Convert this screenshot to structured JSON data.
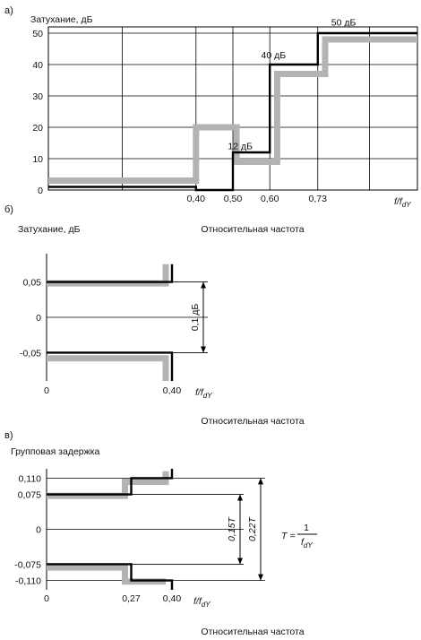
{
  "colors": {
    "line": "#000000",
    "mask": "#b3b3b3",
    "grid": "#000000",
    "text": "#111111"
  },
  "chart_data": [
    {
      "id": "a",
      "type": "line",
      "panel_label": "а)",
      "ylabel": "Затухание, дБ",
      "xlabel": "Относительная частота",
      "x_unit": "f/f",
      "x_unit_sub": "dY",
      "xlim": [
        0,
        1.0
      ],
      "ylim": [
        0,
        52
      ],
      "yticks": [
        {
          "value": 0,
          "label": "0"
        },
        {
          "value": 10,
          "label": "10"
        },
        {
          "value": 20,
          "label": "20"
        },
        {
          "value": 30,
          "label": "30"
        },
        {
          "value": 40,
          "label": "40"
        },
        {
          "value": 50,
          "label": "50"
        }
      ],
      "xticks": [
        {
          "value": 0.4,
          "label": "0,40"
        },
        {
          "value": 0.5,
          "label": "0,50"
        },
        {
          "value": 0.6,
          "label": "0,60"
        },
        {
          "value": 0.73,
          "label": "0,73"
        }
      ],
      "grid_x": [
        0.2,
        0.4,
        0.5,
        0.6,
        0.73,
        0.87
      ],
      "grid_y": [
        10,
        20,
        30,
        40,
        50
      ],
      "series": [
        {
          "role": "mask",
          "x": [
            0,
            0.4,
            0.4,
            0.51,
            0.51,
            0.62,
            0.62,
            0.75,
            0.75,
            1.0
          ],
          "y": [
            3,
            3,
            20,
            20,
            9,
            9,
            37,
            37,
            48,
            48
          ]
        },
        {
          "role": "limit",
          "x": [
            0,
            0.4,
            0.4,
            0.5,
            0.5,
            0.6,
            0.6,
            0.73,
            0.73,
            1.0
          ],
          "y": [
            1,
            1,
            0,
            0,
            12,
            12,
            40,
            40,
            50,
            50
          ]
        }
      ],
      "annotations": [
        {
          "text": "12 дБ",
          "x": 0.52,
          "y": 13
        },
        {
          "text": "40 дБ",
          "x": 0.61,
          "y": 42
        },
        {
          "text": "50 дБ",
          "x": 0.8,
          "y": 52.5
        }
      ]
    },
    {
      "id": "b",
      "type": "line",
      "panel_label": "б)",
      "ylabel": "Затухание, дБ",
      "xlabel": "Относительная частота",
      "x_unit": "f/f",
      "x_unit_sub": "dY",
      "xlim": [
        0,
        0.4
      ],
      "ylim": [
        -0.09,
        0.09
      ],
      "yticks": [
        {
          "value": 0.05,
          "label": "0,05"
        },
        {
          "value": 0,
          "label": "0"
        },
        {
          "value": -0.05,
          "label": "-0,05"
        }
      ],
      "xticks": [
        {
          "value": 0,
          "label": "0"
        },
        {
          "value": 0.4,
          "label": "0,40"
        }
      ],
      "series": [
        {
          "role": "mask",
          "x": [
            0,
            0.38,
            0.38
          ],
          "y": [
            0.048,
            0.048,
            0.075
          ]
        },
        {
          "role": "mask",
          "x": [
            0,
            0.38,
            0.38
          ],
          "y": [
            -0.058,
            -0.058,
            -0.09
          ]
        },
        {
          "role": "limit",
          "x": [
            0,
            0.4,
            0.4
          ],
          "y": [
            0.05,
            0.05,
            0.075
          ]
        },
        {
          "role": "limit",
          "x": [
            0,
            0.4,
            0.4
          ],
          "y": [
            -0.05,
            -0.05,
            -0.09
          ]
        }
      ],
      "dimension": {
        "text": "0,1 дБ",
        "from": -0.05,
        "to": 0.05
      }
    },
    {
      "id": "c",
      "type": "line",
      "panel_label": "в)",
      "ylabel": "Групповая задержка",
      "xlabel": "Относительная частота",
      "x_unit": "f/f",
      "x_unit_sub": "dY",
      "xlim": [
        0,
        0.4
      ],
      "ylim": [
        -0.13,
        0.13
      ],
      "yticks": [
        {
          "value": 0.11,
          "label": "0,110"
        },
        {
          "value": 0.075,
          "label": "0,075"
        },
        {
          "value": 0,
          "label": "0"
        },
        {
          "value": -0.075,
          "label": "-0,075"
        },
        {
          "value": -0.11,
          "label": "-0,110"
        }
      ],
      "xticks": [
        {
          "value": 0,
          "label": "0"
        },
        {
          "value": 0.27,
          "label": "0,27"
        },
        {
          "value": 0.4,
          "label": "0,40"
        }
      ],
      "series": [
        {
          "role": "mask",
          "x": [
            0,
            0.25,
            0.25,
            0.38,
            0.38
          ],
          "y": [
            0.072,
            0.072,
            0.102,
            0.102,
            0.125
          ]
        },
        {
          "role": "mask",
          "x": [
            0,
            0.25,
            0.25,
            0.38
          ],
          "y": [
            -0.082,
            -0.082,
            -0.112,
            -0.112
          ]
        },
        {
          "role": "limit",
          "x": [
            0,
            0.27,
            0.27,
            0.4,
            0.4
          ],
          "y": [
            0.075,
            0.075,
            0.11,
            0.11,
            0.13
          ]
        },
        {
          "role": "limit",
          "x": [
            0,
            0.27,
            0.27,
            0.4,
            0.4
          ],
          "y": [
            -0.075,
            -0.075,
            -0.11,
            -0.11,
            -0.13
          ]
        }
      ],
      "dimensions": [
        {
          "text": "0,15T",
          "from": -0.075,
          "to": 0.075
        },
        {
          "text": "0,22T",
          "from": -0.11,
          "to": 0.11
        }
      ],
      "formula": {
        "lhs": "T =",
        "num": "1",
        "den": "f",
        "den_sub": "dY"
      }
    }
  ]
}
